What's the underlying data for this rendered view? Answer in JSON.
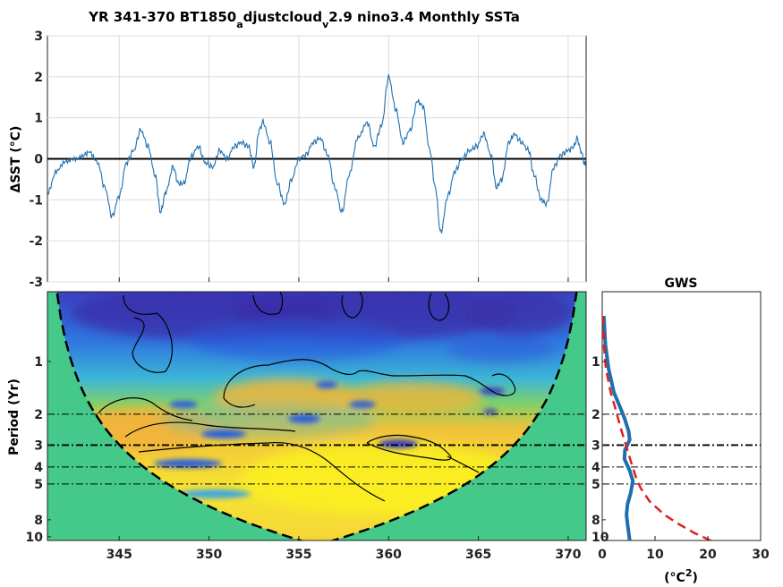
{
  "chart_data": [
    {
      "type": "line",
      "title_parts": {
        "a": "YR 341-370 BT1850",
        "sub1": "a",
        "b": "djustcloud",
        "sub2": "v",
        "c": "2.9 nino3.4 Monthly SSTa"
      },
      "ylabel": "SST (°C)",
      "ylabel_prefix": "Δ",
      "xlim": [
        341,
        371
      ],
      "ylim": [
        -3,
        3
      ],
      "yticks": [
        "-3",
        "-2",
        "-1",
        "0",
        "1",
        "2",
        "3"
      ],
      "xticks": [
        345,
        350,
        355,
        360,
        365,
        370
      ],
      "grid": true,
      "line_color": "#1f6fb0",
      "keypoints": [
        [
          341.0,
          -0.8
        ],
        [
          341.5,
          -0.3
        ],
        [
          342.0,
          -0.1
        ],
        [
          342.5,
          0.0
        ],
        [
          343.0,
          0.1
        ],
        [
          343.3,
          0.15
        ],
        [
          343.8,
          -0.1
        ],
        [
          344.2,
          -0.7
        ],
        [
          344.6,
          -1.4
        ],
        [
          345.0,
          -0.9
        ],
        [
          345.4,
          -0.1
        ],
        [
          345.8,
          0.2
        ],
        [
          346.2,
          0.7
        ],
        [
          346.6,
          0.3
        ],
        [
          347.0,
          -0.4
        ],
        [
          347.3,
          -1.3
        ],
        [
          347.6,
          -0.8
        ],
        [
          348.0,
          -0.2
        ],
        [
          348.3,
          -0.6
        ],
        [
          348.6,
          -0.6
        ],
        [
          349.0,
          0.05
        ],
        [
          349.4,
          0.3
        ],
        [
          349.8,
          -0.1
        ],
        [
          350.2,
          -0.2
        ],
        [
          350.6,
          0.2
        ],
        [
          351.0,
          0.0
        ],
        [
          351.4,
          0.3
        ],
        [
          351.8,
          0.4
        ],
        [
          352.2,
          0.3
        ],
        [
          352.5,
          -0.2
        ],
        [
          352.8,
          0.7
        ],
        [
          353.0,
          0.9
        ],
        [
          353.4,
          0.4
        ],
        [
          353.8,
          -0.6
        ],
        [
          354.2,
          -1.1
        ],
        [
          354.6,
          -0.5
        ],
        [
          355.0,
          0.0
        ],
        [
          355.4,
          0.1
        ],
        [
          355.8,
          0.4
        ],
        [
          356.2,
          0.5
        ],
        [
          356.6,
          0.1
        ],
        [
          357.0,
          -0.7
        ],
        [
          357.4,
          -1.3
        ],
        [
          357.8,
          -0.4
        ],
        [
          358.3,
          0.5
        ],
        [
          358.8,
          0.9
        ],
        [
          359.2,
          0.3
        ],
        [
          359.6,
          0.8
        ],
        [
          360.0,
          2.0
        ],
        [
          360.4,
          1.2
        ],
        [
          360.8,
          0.4
        ],
        [
          361.2,
          0.7
        ],
        [
          361.6,
          1.4
        ],
        [
          361.9,
          1.3
        ],
        [
          362.3,
          0.2
        ],
        [
          362.6,
          -0.7
        ],
        [
          362.9,
          -1.8
        ],
        [
          363.3,
          -0.9
        ],
        [
          363.7,
          -0.3
        ],
        [
          364.1,
          0.0
        ],
        [
          364.5,
          0.2
        ],
        [
          364.9,
          0.3
        ],
        [
          365.3,
          0.6
        ],
        [
          365.7,
          0.1
        ],
        [
          366.0,
          -0.7
        ],
        [
          366.3,
          -0.5
        ],
        [
          366.7,
          0.4
        ],
        [
          367.0,
          0.6
        ],
        [
          367.4,
          0.4
        ],
        [
          367.8,
          0.2
        ],
        [
          368.1,
          -0.4
        ],
        [
          368.5,
          -1.0
        ],
        [
          368.8,
          -1.1
        ],
        [
          369.2,
          -0.2
        ],
        [
          369.6,
          0.1
        ],
        [
          370.0,
          0.2
        ],
        [
          370.3,
          0.3
        ],
        [
          370.5,
          0.5
        ],
        [
          370.7,
          0.2
        ],
        [
          370.9,
          -0.1
        ],
        [
          371.0,
          -0.2
        ]
      ]
    },
    {
      "type": "heatmap",
      "name": "wavelet-power",
      "ylabel": "Period (Yr)",
      "xlim": [
        341,
        371
      ],
      "period_ticks": [
        1,
        2,
        3,
        4,
        5,
        8,
        10
      ],
      "reference_periods": [
        2,
        3,
        4,
        5
      ],
      "xticks": [
        345,
        350,
        355,
        360,
        365,
        370
      ],
      "coi_fill": "#44c98a"
    },
    {
      "type": "line",
      "title": "GWS",
      "xlabel": "(°C",
      "xlabel_sup": "2",
      "xlabel_end": ")",
      "xlim": [
        0,
        30
      ],
      "xticks": [
        0,
        10,
        20,
        30
      ],
      "period_ticks": [
        1,
        2,
        3,
        4,
        5,
        8,
        10
      ],
      "reference_periods": [
        2,
        3,
        4,
        5
      ],
      "series": [
        {
          "color": "#1f6fb0",
          "points": [
            [
              0.3,
              0.55
            ],
            [
              0.6,
              0.8
            ],
            [
              1.2,
              1.1
            ],
            [
              2.2,
              1.5
            ],
            [
              3.3,
              1.8
            ],
            [
              4.2,
              2.1
            ],
            [
              5.0,
              2.5
            ],
            [
              5.2,
              2.8
            ],
            [
              4.3,
              3.2
            ],
            [
              4.2,
              3.6
            ],
            [
              5.2,
              4.2
            ],
            [
              5.8,
              4.8
            ],
            [
              5.4,
              5.6
            ],
            [
              4.8,
              6.5
            ],
            [
              4.6,
              7.5
            ],
            [
              4.8,
              8.5
            ],
            [
              5.2,
              10.5
            ]
          ]
        },
        {
          "color": "#e02020",
          "points": [
            [
              0.1,
              0.55
            ],
            [
              0.3,
              0.8
            ],
            [
              0.7,
              1.1
            ],
            [
              1.6,
              1.5
            ],
            [
              2.6,
              1.9
            ],
            [
              3.5,
              2.4
            ],
            [
              4.5,
              3.0
            ],
            [
              5.4,
              3.7
            ],
            [
              6.3,
              4.5
            ],
            [
              7.3,
              5.3
            ],
            [
              9.0,
              6.3
            ],
            [
              11.8,
              7.5
            ],
            [
              14.6,
              8.5
            ],
            [
              17.4,
              9.5
            ],
            [
              20.5,
              10.5
            ]
          ]
        }
      ]
    }
  ]
}
